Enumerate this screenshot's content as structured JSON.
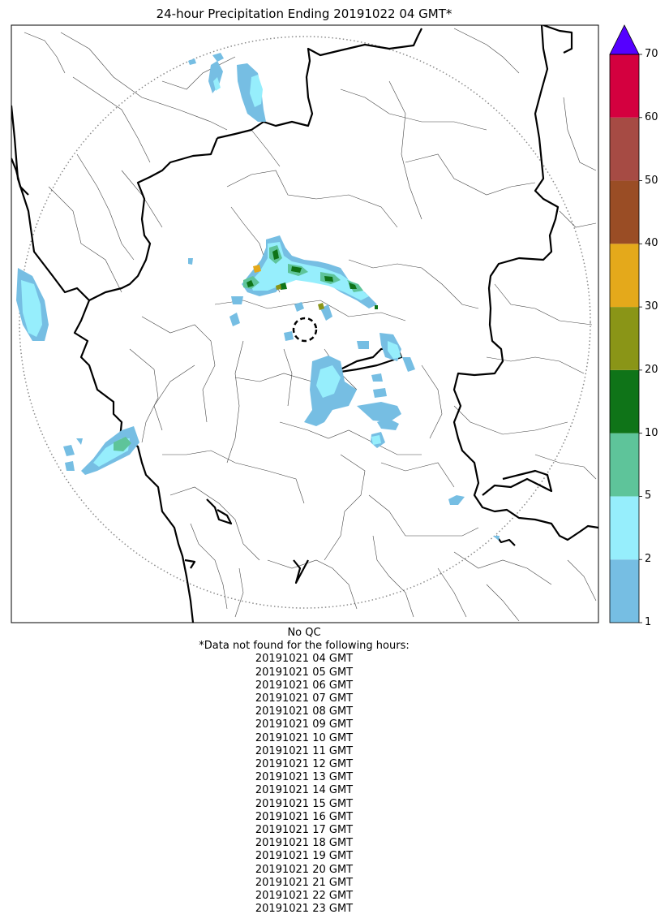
{
  "title": "24-hour Precipitation Ending 20191022 04 GMT*",
  "qc_status": "No QC",
  "missing_note": "*Data not found for the following hours:",
  "missing_hours": [
    "20191021 04 GMT",
    "20191021 05 GMT",
    "20191021 06 GMT",
    "20191021 07 GMT",
    "20191021 08 GMT",
    "20191021 09 GMT",
    "20191021 10 GMT",
    "20191021 11 GMT",
    "20191021 12 GMT",
    "20191021 13 GMT",
    "20191021 14 GMT",
    "20191021 15 GMT",
    "20191021 16 GMT",
    "20191021 17 GMT",
    "20191021 18 GMT",
    "20191021 19 GMT",
    "20191021 20 GMT",
    "20191021 21 GMT",
    "20191021 22 GMT",
    "20191021 23 GMT"
  ],
  "colorbar": {
    "ticks": [
      "1",
      "2",
      "5",
      "10",
      "20",
      "30",
      "40",
      "50",
      "60",
      "70"
    ],
    "colors": [
      "#76bee3",
      "#96eefc",
      "#5ec49a",
      "#0f7418",
      "#8a9517",
      "#e4a91b",
      "#9a4d25",
      "#a64b44",
      "#d4003f"
    ],
    "extend_color": "#5500ff"
  },
  "precip_colors": {
    "light": "#76bee3",
    "moderate": "#96eefc",
    "green": "#5ec49a",
    "dark_green": "#0f7418",
    "olive": "#8a9517",
    "orange": "#e4a91b"
  }
}
